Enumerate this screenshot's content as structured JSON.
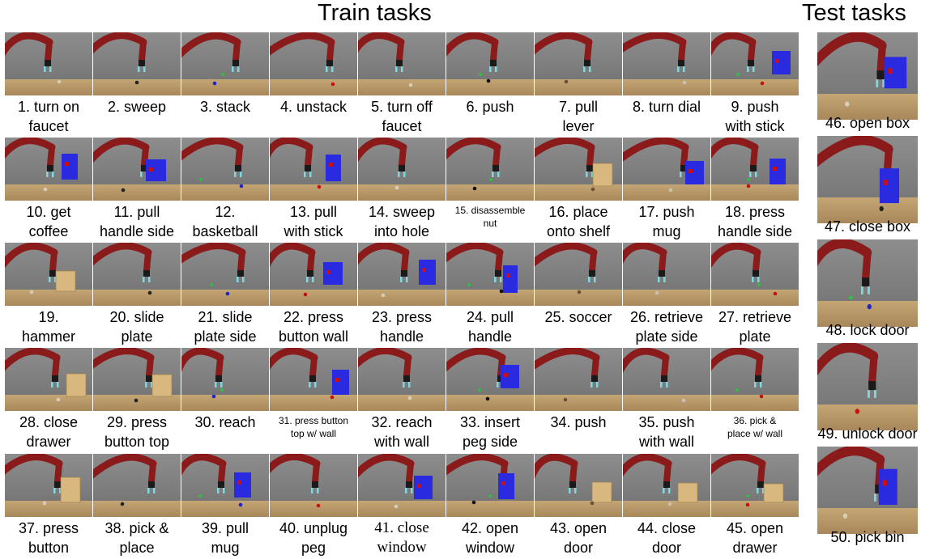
{
  "headers": {
    "train": "Train tasks",
    "test": "Test tasks"
  },
  "train_rows": [
    [
      {
        "id": 1,
        "lines": [
          "1. turn on",
          "faucet"
        ]
      },
      {
        "id": 2,
        "lines": [
          "2. sweep"
        ]
      },
      {
        "id": 3,
        "lines": [
          "3. stack"
        ]
      },
      {
        "id": 4,
        "lines": [
          "4. unstack"
        ]
      },
      {
        "id": 5,
        "lines": [
          "5. turn off",
          "faucet"
        ]
      },
      {
        "id": 6,
        "lines": [
          "6. push"
        ]
      },
      {
        "id": 7,
        "lines": [
          "7. pull",
          "lever"
        ]
      },
      {
        "id": 8,
        "lines": [
          "8. turn dial"
        ]
      },
      {
        "id": 9,
        "lines": [
          "9. push",
          "with stick"
        ]
      }
    ],
    [
      {
        "id": 10,
        "lines": [
          "10. get",
          "coffee"
        ]
      },
      {
        "id": 11,
        "lines": [
          "11. pull",
          "handle side"
        ]
      },
      {
        "id": 12,
        "lines": [
          "12.",
          "basketball"
        ]
      },
      {
        "id": 13,
        "lines": [
          "13. pull",
          "with stick"
        ]
      },
      {
        "id": 14,
        "lines": [
          "14. sweep",
          "into hole"
        ]
      },
      {
        "id": 15,
        "lines": [
          "15. disassemble",
          "nut"
        ],
        "style": "small"
      },
      {
        "id": 16,
        "lines": [
          "16. place",
          "onto shelf"
        ]
      },
      {
        "id": 17,
        "lines": [
          "17. push",
          "mug"
        ]
      },
      {
        "id": 18,
        "lines": [
          "18. press",
          "handle side"
        ]
      }
    ],
    [
      {
        "id": 19,
        "lines": [
          "19.",
          "hammer"
        ]
      },
      {
        "id": 20,
        "lines": [
          "20. slide",
          "plate"
        ]
      },
      {
        "id": 21,
        "lines": [
          "21. slide",
          "plate side"
        ]
      },
      {
        "id": 22,
        "lines": [
          "22. press",
          "button wall"
        ]
      },
      {
        "id": 23,
        "lines": [
          "23. press",
          "handle"
        ]
      },
      {
        "id": 24,
        "lines": [
          "24. pull",
          "handle"
        ]
      },
      {
        "id": 25,
        "lines": [
          "25. soccer"
        ]
      },
      {
        "id": 26,
        "lines": [
          "26. retrieve",
          "plate side"
        ]
      },
      {
        "id": 27,
        "lines": [
          "27. retrieve",
          "plate"
        ]
      }
    ],
    [
      {
        "id": 28,
        "lines": [
          "28. close",
          "drawer"
        ]
      },
      {
        "id": 29,
        "lines": [
          "29. press",
          "button top"
        ]
      },
      {
        "id": 30,
        "lines": [
          "30. reach"
        ]
      },
      {
        "id": 31,
        "lines": [
          "31. press button",
          "top w/ wall"
        ],
        "style": "small"
      },
      {
        "id": 32,
        "lines": [
          "32. reach",
          "with wall"
        ]
      },
      {
        "id": 33,
        "lines": [
          "33. insert",
          "peg side"
        ]
      },
      {
        "id": 34,
        "lines": [
          "34. push"
        ]
      },
      {
        "id": 35,
        "lines": [
          "35. push",
          "with wall"
        ]
      },
      {
        "id": 36,
        "lines": [
          "36. pick &",
          "place w/ wall"
        ],
        "style": "small"
      }
    ],
    [
      {
        "id": 37,
        "lines": [
          "37. press",
          "button"
        ]
      },
      {
        "id": 38,
        "lines": [
          "38. pick &",
          "place"
        ]
      },
      {
        "id": 39,
        "lines": [
          "39. pull",
          "mug"
        ]
      },
      {
        "id": 40,
        "lines": [
          "40. unplug",
          "peg"
        ]
      },
      {
        "id": 41,
        "lines": [
          "41. close",
          "window"
        ],
        "style": "serif"
      },
      {
        "id": 42,
        "lines": [
          "42. open",
          "window"
        ]
      },
      {
        "id": 43,
        "lines": [
          "43. open",
          "door"
        ]
      },
      {
        "id": 44,
        "lines": [
          "44. close",
          "door"
        ]
      },
      {
        "id": 45,
        "lines": [
          "45. open",
          "drawer"
        ]
      }
    ]
  ],
  "test_tasks": [
    {
      "id": 46,
      "label": "46. open box"
    },
    {
      "id": 47,
      "label": "47. close box"
    },
    {
      "id": 48,
      "label": "48. lock door"
    },
    {
      "id": 49,
      "label": "49. unlock door"
    },
    {
      "id": 50,
      "label": "50. pick bin"
    }
  ],
  "colors": {
    "robot": "#8b1a1a",
    "table": "#b59562",
    "background": "#858585",
    "blue_object": "#2a2ae0"
  }
}
